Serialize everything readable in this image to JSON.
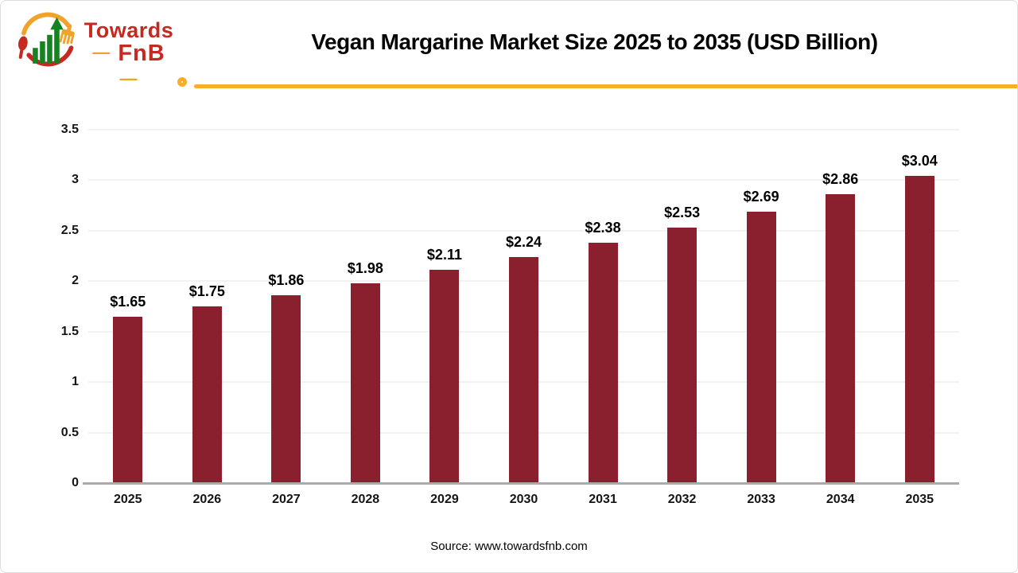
{
  "logo": {
    "line1": "Towards",
    "line2": "FnB",
    "dash": "—"
  },
  "header": {
    "title": "Vegan Margarine Market Size 2025 to 2035 (USD Billion)"
  },
  "chart_data": {
    "type": "bar",
    "title": "Vegan Margarine Market Size 2025 to 2035 (USD Billion)",
    "categories": [
      "2025",
      "2026",
      "2027",
      "2028",
      "2029",
      "2030",
      "2031",
      "2032",
      "2033",
      "2034",
      "2035"
    ],
    "values": [
      1.65,
      1.75,
      1.86,
      1.98,
      2.11,
      2.24,
      2.38,
      2.53,
      2.69,
      2.86,
      3.04
    ],
    "value_labels": [
      "$1.65",
      "$1.75",
      "$1.86",
      "$1.98",
      "$2.11",
      "$2.24",
      "$2.38",
      "$2.53",
      "$2.69",
      "$2.86",
      "$3.04"
    ],
    "unit": "USD Billion",
    "xlabel": "",
    "ylabel": "",
    "ylim": [
      0,
      3.5
    ],
    "yticks": [
      0,
      0.5,
      1,
      1.5,
      2,
      2.5,
      3,
      3.5
    ],
    "ytick_labels": [
      "0",
      "0.5",
      "1",
      "1.5",
      "2",
      "2.5",
      "3",
      "3.5"
    ],
    "grid": true,
    "legend": false,
    "bar_color": "#8a1f2e"
  },
  "footer": {
    "source": "Source: www.towardsfnb.com"
  },
  "colors": {
    "bar": "#8a1f2e",
    "accent_line": "#f6ae2d",
    "logo_red": "#c52a21",
    "logo_yellow": "#f0a32a",
    "logo_green": "#168222",
    "grid": "#f2f2f2",
    "axis": "#ababab"
  }
}
